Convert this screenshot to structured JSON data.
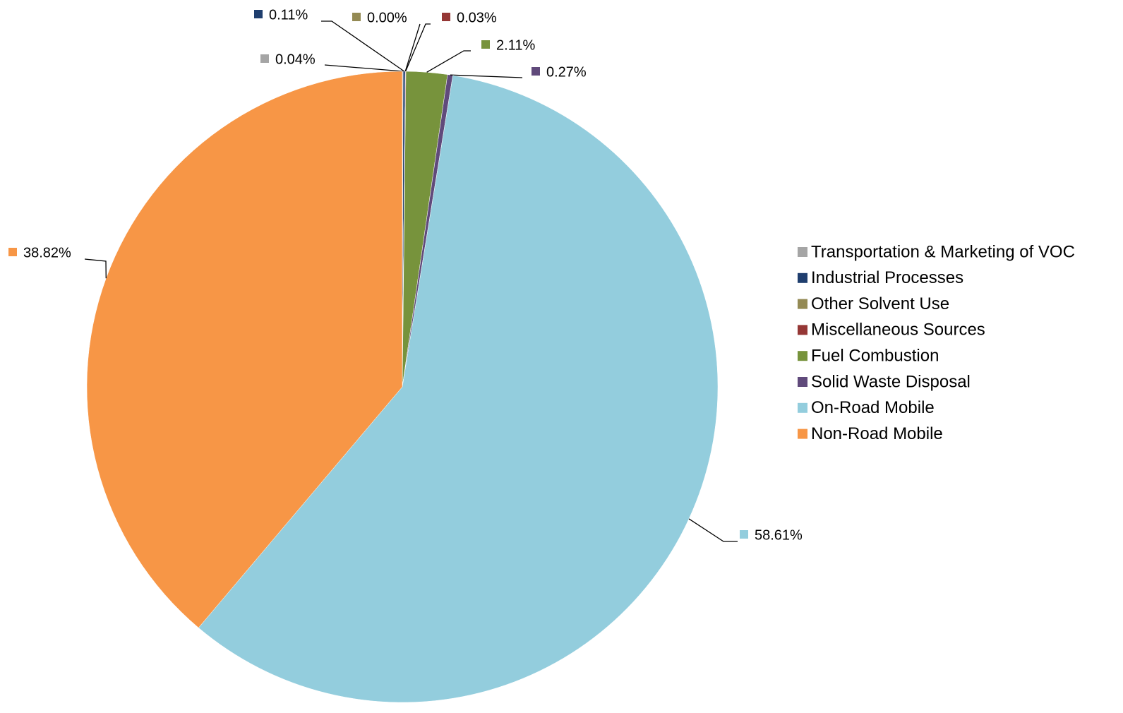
{
  "chart_data": {
    "type": "pie",
    "categories": [
      "Transportation & Marketing of VOC",
      "Industrial Processes",
      "Other Solvent Use",
      "Miscellaneous Sources",
      "Fuel Combustion",
      "Solid Waste Disposal",
      "On-Road Mobile",
      "Non-Road Mobile"
    ],
    "values": [
      0.04,
      0.11,
      0.0,
      0.03,
      2.11,
      0.27,
      58.61,
      38.82
    ],
    "value_labels": [
      "0.04%",
      "0.11%",
      "0.00%",
      "0.03%",
      "2.11%",
      "0.27%",
      "58.61%",
      "38.82%"
    ],
    "colors": [
      "#a5a5a5",
      "#1f3e6e",
      "#948a54",
      "#953735",
      "#77933c",
      "#604a7b",
      "#93cddd",
      "#f79646"
    ],
    "legend": "right"
  }
}
